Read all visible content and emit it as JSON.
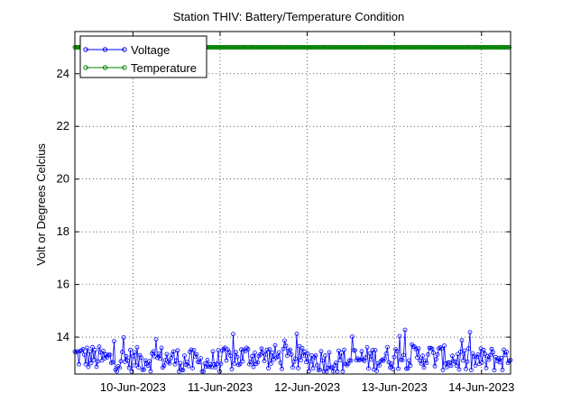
{
  "chart_data": {
    "type": "line",
    "title": "Station THIV: Battery/Temperature Condition",
    "xlabel": "",
    "ylabel": "Volt or Degrees Celcius",
    "xlim": [
      "2023-06-09 08:00",
      "2023-06-14 08:00"
    ],
    "ylim": [
      12.6,
      25.6
    ],
    "x_ticks": [
      "2023-06-10",
      "2023-06-11",
      "2023-06-12",
      "2023-06-13",
      "2023-06-14"
    ],
    "x_tick_labels": [
      "10-Jun-2023",
      "11-Jun-2023",
      "12-Jun-2023",
      "13-Jun-2023",
      "14-Jun-2023"
    ],
    "y_ticks": [
      14,
      16,
      18,
      20,
      22,
      24
    ],
    "grid": true,
    "legend_position": "top-left",
    "series": [
      {
        "name": "Voltage",
        "color": "#0000ff",
        "marker": "circle",
        "x": [
          "2023-06-09 08:00",
          "2023-06-09 20:00",
          "2023-06-10 08:00",
          "2023-06-10 20:00",
          "2023-06-11 08:00",
          "2023-06-11 20:00",
          "2023-06-12 08:00",
          "2023-06-12 20:00",
          "2023-06-13 08:00",
          "2023-06-13 20:00",
          "2023-06-14 08:00"
        ],
        "values": [
          13.3,
          13.1,
          13.2,
          13.0,
          13.3,
          13.2,
          13.1,
          13.2,
          13.3,
          13.1,
          13.2
        ],
        "min_observed": 12.7,
        "max_observed": 14.3
      },
      {
        "name": "Temperature",
        "color": "#008000",
        "marker": "circle",
        "x": [
          "2023-06-09 08:00",
          "2023-06-14 08:00"
        ],
        "values": [
          25,
          25
        ]
      }
    ]
  }
}
